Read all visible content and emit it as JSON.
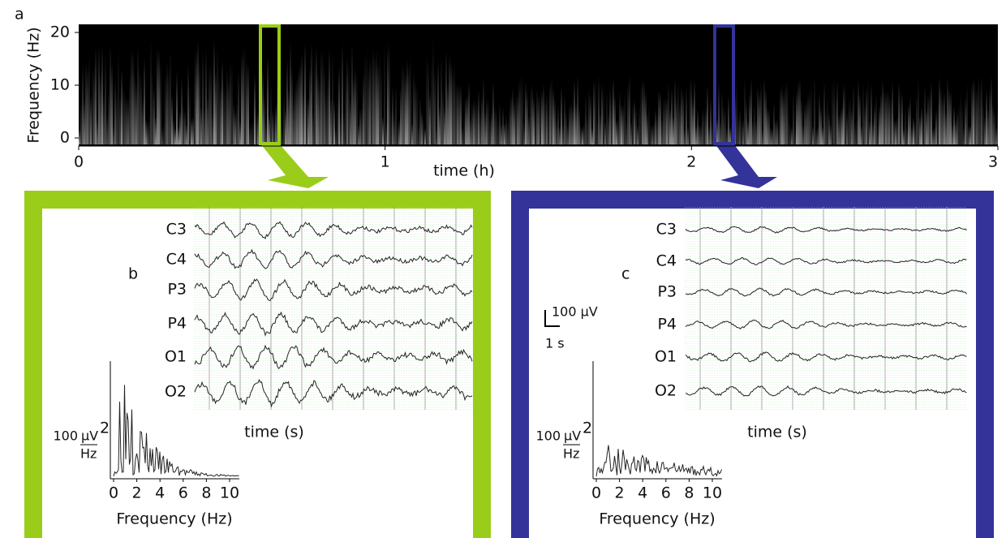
{
  "panel_a": {
    "label": "a",
    "y_label": "Frequency (Hz)",
    "x_label": "time (h)",
    "yticks": [
      0,
      10,
      20
    ],
    "xticks": [
      0,
      1,
      2,
      3
    ]
  },
  "panel_b": {
    "label": "b",
    "channels": [
      "C3",
      "C4",
      "P3",
      "P4",
      "O1",
      "O2"
    ],
    "x_label": "time (s)",
    "spectrum": {
      "scale_value": 100,
      "unit": "µV",
      "exponent": 2,
      "per": "Hz",
      "xticks": [
        0,
        2,
        4,
        6,
        8,
        10
      ],
      "x_label": "Frequency (Hz)"
    }
  },
  "panel_c": {
    "label": "c",
    "channels": [
      "C3",
      "C4",
      "P3",
      "P4",
      "O1",
      "O2"
    ],
    "x_label": "time (s)",
    "scale_bar": {
      "amplitude": "100 µV",
      "time": "1 s"
    },
    "spectrum": {
      "scale_value": 100,
      "unit": "µV",
      "exponent": 2,
      "per": "Hz",
      "xticks": [
        0,
        2,
        4,
        6,
        8,
        10
      ],
      "x_label": "Frequency (Hz)"
    }
  }
}
